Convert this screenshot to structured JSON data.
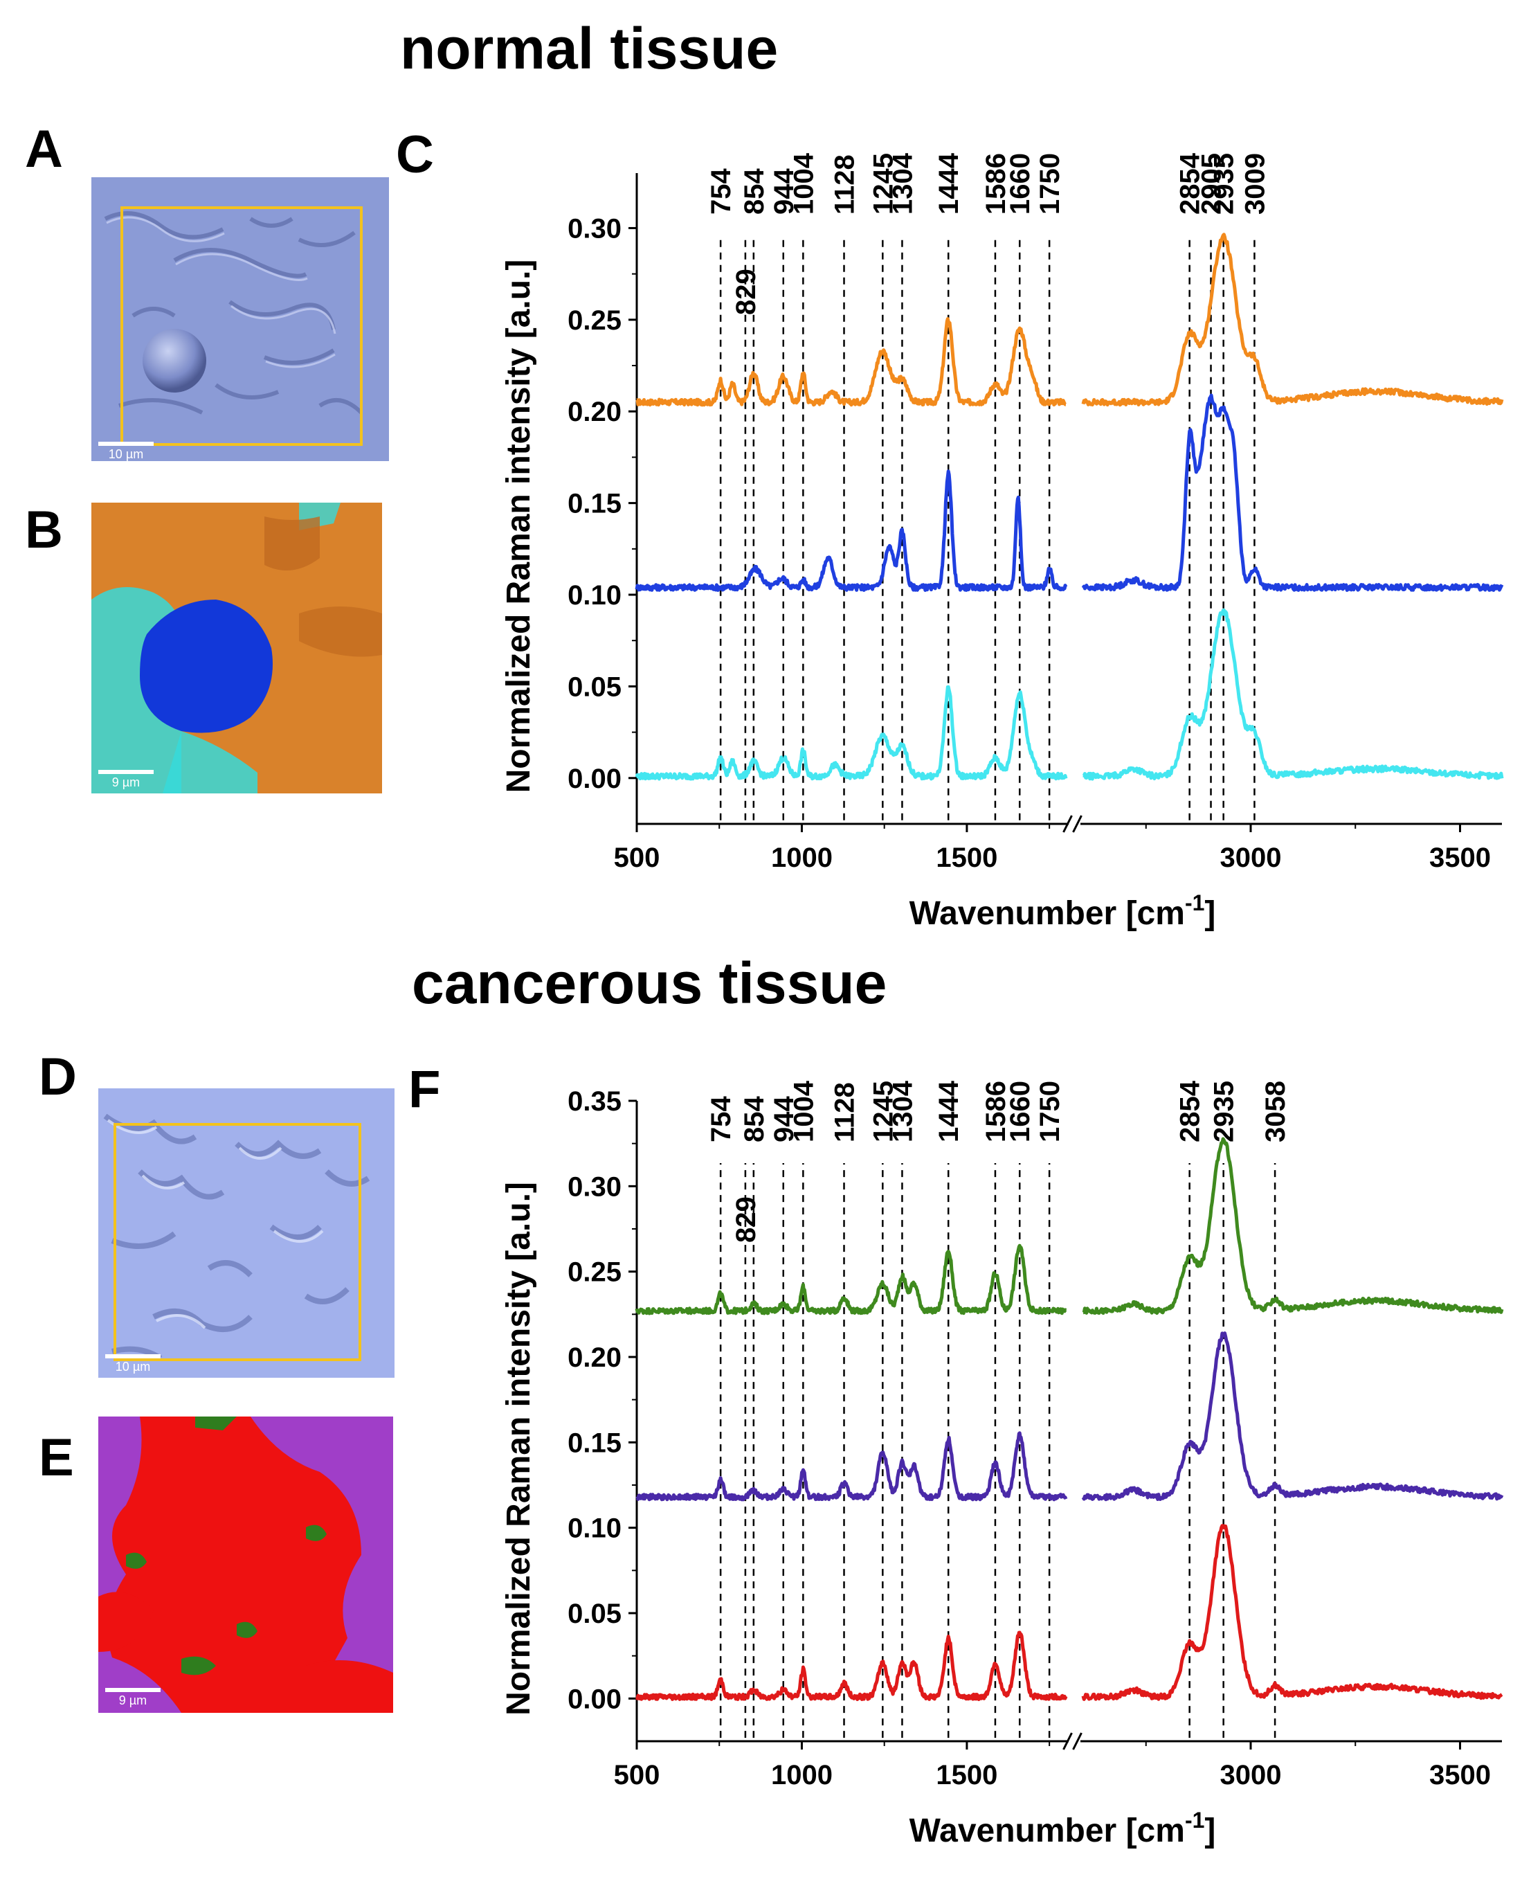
{
  "titles": {
    "normal": "normal tissue",
    "cancer": "cancerous tissue"
  },
  "panel_labels": {
    "A": "A",
    "B": "B",
    "C": "C",
    "D": "D",
    "E": "E",
    "F": "F"
  },
  "images": {
    "A": {
      "scale_label": "10 µm",
      "colors": {
        "bg": "#8b9bd6",
        "frame": "#f3c21d"
      }
    },
    "B": {
      "scale_label": "9 µm",
      "colors": {
        "orange": "#d9822b",
        "blue": "#1238d9",
        "cyan": "#36d9d9"
      }
    },
    "D": {
      "scale_label": "10 µm",
      "colors": {
        "bg": "#a2b1ec",
        "frame": "#f3c21d"
      }
    },
    "E": {
      "scale_label": "9 µm",
      "colors": {
        "red": "#ee1111",
        "purple": "#a03ec8",
        "green": "#2f7d1e"
      }
    }
  },
  "chart_data": [
    {
      "type": "line",
      "panel": "C",
      "xlabel": "Wavenumber [cm",
      "xlabel_sup": "-1",
      "xlabel_close": "]",
      "ylabel": "Normalized Raman intensity [a.u.]",
      "ylim": [
        -0.025,
        0.33
      ],
      "x_segments": [
        [
          500,
          1800
        ],
        [
          2600,
          3600
        ]
      ],
      "x_ticks": [
        500,
        1000,
        1500,
        3000,
        3500
      ],
      "y_ticks": [
        "0.00",
        "0.05",
        "0.10",
        "0.15",
        "0.20",
        "0.25",
        "0.30"
      ],
      "y_tick_values": [
        0,
        0.05,
        0.1,
        0.15,
        0.2,
        0.25,
        0.3
      ],
      "peak_labels_top": [
        "754",
        "854",
        "944",
        "1004",
        "1128",
        "1245",
        "1304",
        "1444",
        "1586",
        "1660",
        "1750",
        "2854",
        "2905",
        "2935",
        "3009"
      ],
      "peak_labels_low": [
        "829"
      ],
      "peak_positions": [
        754,
        829,
        854,
        944,
        1004,
        1128,
        1245,
        1304,
        1444,
        1586,
        1660,
        1750,
        2854,
        2905,
        2935,
        3009
      ],
      "series": [
        {
          "color": "#f28a1c",
          "baseline": 0.205,
          "peaks": [
            [
              754,
              0.012,
              8
            ],
            [
              790,
              0.01,
              8
            ],
            [
              854,
              0.016,
              12
            ],
            [
              944,
              0.014,
              14
            ],
            [
              1004,
              0.016,
              7
            ],
            [
              1090,
              0.006,
              14
            ],
            [
              1245,
              0.028,
              22
            ],
            [
              1304,
              0.012,
              16
            ],
            [
              1444,
              0.045,
              13
            ],
            [
              1586,
              0.01,
              15
            ],
            [
              1660,
              0.04,
              20
            ],
            [
              1700,
              0.01,
              12
            ],
            [
              2854,
              0.035,
              20
            ],
            [
              2935,
              0.09,
              30
            ],
            [
              3009,
              0.02,
              16
            ],
            [
              3300,
              0.006,
              120
            ]
          ]
        },
        {
          "color": "#1f3fe0",
          "baseline": 0.104,
          "peaks": [
            [
              860,
              0.01,
              18
            ],
            [
              940,
              0.005,
              14
            ],
            [
              1004,
              0.004,
              7
            ],
            [
              1080,
              0.016,
              14
            ],
            [
              1265,
              0.022,
              14
            ],
            [
              1304,
              0.03,
              10
            ],
            [
              1444,
              0.062,
              10
            ],
            [
              1655,
              0.05,
              7
            ],
            [
              1750,
              0.01,
              7
            ],
            [
              2720,
              0.004,
              20
            ],
            [
              2854,
              0.075,
              10
            ],
            [
              2880,
              0.05,
              14
            ],
            [
              2905,
              0.085,
              14
            ],
            [
              2935,
              0.082,
              14
            ],
            [
              2960,
              0.06,
              12
            ],
            [
              3009,
              0.01,
              10
            ]
          ]
        },
        {
          "color": "#44e6f0",
          "baseline": 0.001,
          "peaks": [
            [
              754,
              0.01,
              8
            ],
            [
              790,
              0.008,
              8
            ],
            [
              854,
              0.008,
              12
            ],
            [
              944,
              0.01,
              14
            ],
            [
              1004,
              0.014,
              7
            ],
            [
              1100,
              0.006,
              14
            ],
            [
              1245,
              0.022,
              22
            ],
            [
              1304,
              0.016,
              16
            ],
            [
              1444,
              0.048,
              12
            ],
            [
              1586,
              0.01,
              15
            ],
            [
              1660,
              0.045,
              18
            ],
            [
              1700,
              0.006,
              12
            ],
            [
              2720,
              0.004,
              20
            ],
            [
              2854,
              0.03,
              20
            ],
            [
              2935,
              0.09,
              30
            ],
            [
              3009,
              0.02,
              16
            ],
            [
              3300,
              0.004,
              120
            ]
          ]
        }
      ]
    },
    {
      "type": "line",
      "panel": "F",
      "xlabel": "Wavenumber [cm",
      "xlabel_sup": "-1",
      "xlabel_close": "]",
      "ylabel": "Normalized Raman intensity [a.u.]",
      "ylim": [
        -0.025,
        0.35
      ],
      "x_segments": [
        [
          500,
          1800
        ],
        [
          2600,
          3600
        ]
      ],
      "x_ticks": [
        500,
        1000,
        1500,
        3000,
        3500
      ],
      "y_ticks": [
        "0.00",
        "0.05",
        "0.10",
        "0.15",
        "0.20",
        "0.25",
        "0.30",
        "0.35"
      ],
      "y_tick_values": [
        0,
        0.05,
        0.1,
        0.15,
        0.2,
        0.25,
        0.3,
        0.35
      ],
      "peak_labels_top": [
        "754",
        "854",
        "944",
        "1004",
        "1128",
        "1245",
        "1304",
        "1444",
        "1586",
        "1660",
        "1750",
        "2854",
        "2935",
        "3058"
      ],
      "peak_labels_low": [
        "829"
      ],
      "peak_positions": [
        754,
        829,
        854,
        944,
        1004,
        1128,
        1245,
        1304,
        1444,
        1586,
        1660,
        1750,
        2854,
        2935,
        3058
      ],
      "series": [
        {
          "color": "#3f8a1e",
          "baseline": 0.227,
          "peaks": [
            [
              754,
              0.01,
              8
            ],
            [
              854,
              0.004,
              10
            ],
            [
              944,
              0.004,
              12
            ],
            [
              1004,
              0.014,
              7
            ],
            [
              1128,
              0.008,
              10
            ],
            [
              1245,
              0.016,
              16
            ],
            [
              1304,
              0.02,
              12
            ],
            [
              1340,
              0.016,
              12
            ],
            [
              1444,
              0.035,
              12
            ],
            [
              1586,
              0.022,
              12
            ],
            [
              1660,
              0.038,
              14
            ],
            [
              2720,
              0.004,
              20
            ],
            [
              2854,
              0.03,
              20
            ],
            [
              2935,
              0.1,
              28
            ],
            [
              3058,
              0.006,
              12
            ],
            [
              3300,
              0.006,
              120
            ]
          ]
        },
        {
          "color": "#4a2aa8",
          "baseline": 0.118,
          "peaks": [
            [
              754,
              0.01,
              8
            ],
            [
              854,
              0.004,
              10
            ],
            [
              944,
              0.004,
              12
            ],
            [
              1004,
              0.016,
              7
            ],
            [
              1128,
              0.008,
              10
            ],
            [
              1245,
              0.026,
              14
            ],
            [
              1304,
              0.02,
              12
            ],
            [
              1340,
              0.018,
              12
            ],
            [
              1444,
              0.034,
              12
            ],
            [
              1586,
              0.02,
              12
            ],
            [
              1660,
              0.036,
              14
            ],
            [
              2720,
              0.004,
              20
            ],
            [
              2854,
              0.03,
              20
            ],
            [
              2935,
              0.095,
              28
            ],
            [
              3058,
              0.006,
              12
            ],
            [
              3300,
              0.006,
              120
            ]
          ]
        },
        {
          "color": "#e01a1a",
          "baseline": 0.001,
          "peaks": [
            [
              754,
              0.01,
              8
            ],
            [
              854,
              0.004,
              10
            ],
            [
              944,
              0.004,
              12
            ],
            [
              1004,
              0.016,
              7
            ],
            [
              1128,
              0.008,
              10
            ],
            [
              1245,
              0.02,
              14
            ],
            [
              1304,
              0.02,
              12
            ],
            [
              1340,
              0.02,
              12
            ],
            [
              1444,
              0.034,
              12
            ],
            [
              1586,
              0.02,
              12
            ],
            [
              1660,
              0.038,
              14
            ],
            [
              2720,
              0.004,
              20
            ],
            [
              2854,
              0.03,
              20
            ],
            [
              2935,
              0.1,
              28
            ],
            [
              3058,
              0.006,
              12
            ],
            [
              3300,
              0.006,
              120
            ]
          ]
        }
      ]
    }
  ]
}
